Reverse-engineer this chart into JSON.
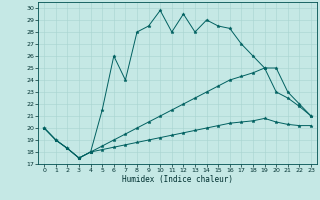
{
  "xlabel": "Humidex (Indice chaleur)",
  "xlim": [
    -0.5,
    23.5
  ],
  "ylim": [
    17,
    30.5
  ],
  "yticks": [
    17,
    18,
    19,
    20,
    21,
    22,
    23,
    24,
    25,
    26,
    27,
    28,
    29,
    30
  ],
  "xticks": [
    0,
    1,
    2,
    3,
    4,
    5,
    6,
    7,
    8,
    9,
    10,
    11,
    12,
    13,
    14,
    15,
    16,
    17,
    18,
    19,
    20,
    21,
    22,
    23
  ],
  "bg_color": "#c5e8e5",
  "grid_color": "#a8d4d0",
  "line_color": "#006060",
  "line1_x": [
    0,
    1,
    2,
    3,
    4,
    5,
    6,
    7,
    8,
    9,
    10,
    11,
    12,
    13,
    14,
    15,
    16,
    17,
    18,
    19,
    20,
    21,
    22,
    23
  ],
  "line1_y": [
    20.0,
    19.0,
    18.3,
    17.5,
    18.0,
    21.5,
    26.0,
    24.0,
    28.0,
    28.5,
    29.8,
    28.0,
    29.5,
    28.0,
    29.0,
    28.5,
    28.3,
    27.0,
    26.0,
    25.0,
    23.0,
    22.5,
    21.8,
    21.0
  ],
  "line2_x": [
    0,
    1,
    2,
    3,
    4,
    5,
    6,
    7,
    8,
    9,
    10,
    11,
    12,
    13,
    14,
    15,
    16,
    17,
    18,
    19,
    20,
    21,
    22,
    23
  ],
  "line2_y": [
    20.0,
    19.0,
    18.3,
    17.5,
    18.0,
    18.5,
    19.0,
    19.5,
    20.0,
    20.5,
    21.0,
    21.5,
    22.0,
    22.5,
    23.0,
    23.5,
    24.0,
    24.3,
    24.6,
    25.0,
    25.0,
    23.0,
    22.0,
    21.0
  ],
  "line3_x": [
    0,
    1,
    2,
    3,
    4,
    5,
    6,
    7,
    8,
    9,
    10,
    11,
    12,
    13,
    14,
    15,
    16,
    17,
    18,
    19,
    20,
    21,
    22,
    23
  ],
  "line3_y": [
    20.0,
    19.0,
    18.3,
    17.5,
    18.0,
    18.2,
    18.4,
    18.6,
    18.8,
    19.0,
    19.2,
    19.4,
    19.6,
    19.8,
    20.0,
    20.2,
    20.4,
    20.5,
    20.6,
    20.8,
    20.5,
    20.3,
    20.2,
    20.2
  ]
}
